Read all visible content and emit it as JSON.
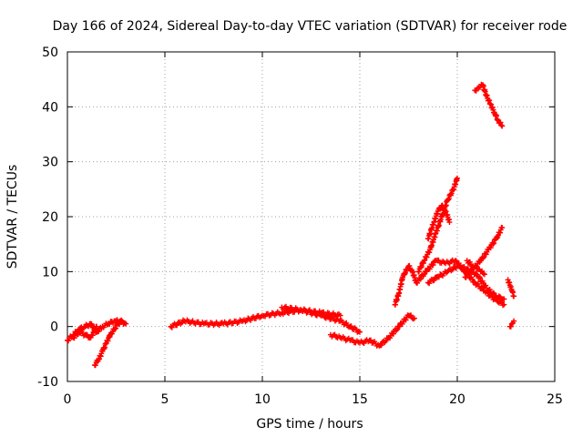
{
  "chart_data": {
    "type": "scatter",
    "title": "Day 166 of 2024, Sidereal Day-to-day VTEC variation (SDTVAR) for receiver rode",
    "xlabel": "GPS time / hours",
    "ylabel": "SDTVAR / TECUs",
    "xlim": [
      0,
      25
    ],
    "ylim": [
      -10,
      50
    ],
    "x_ticks": [
      0,
      5,
      10,
      15,
      20,
      25
    ],
    "x_tick_labels": [
      "0",
      "5",
      "10",
      "15",
      "20",
      "25"
    ],
    "y_ticks": [
      -10,
      0,
      10,
      20,
      30,
      40,
      50
    ],
    "y_tick_labels": [
      "-10",
      "0",
      "10",
      "20",
      "30",
      "40",
      "50"
    ],
    "grid": true,
    "marker": "+",
    "series": [
      {
        "name": "SDTVAR",
        "color": "#ff0000",
        "segments": [
          {
            "x": [
              0.0,
              0.3,
              0.6,
              0.9,
              1.2,
              1.5,
              1.8,
              2.1,
              2.4,
              2.7,
              3.0
            ],
            "y": [
              -2.5,
              -1.5,
              -0.5,
              0.0,
              0.5,
              -1.0,
              0.0,
              0.5,
              1.0,
              1.0,
              0.5
            ]
          },
          {
            "x": [
              0.3,
              0.6,
              0.9,
              1.2,
              1.5
            ],
            "y": [
              -2.0,
              -1.0,
              -1.5,
              -2.0,
              0.0
            ]
          },
          {
            "x": [
              1.4,
              1.6,
              1.8,
              2.0,
              2.2,
              2.4,
              2.6,
              2.8
            ],
            "y": [
              -7.0,
              -6.0,
              -4.5,
              -3.0,
              -1.5,
              -0.5,
              0.5,
              1.0
            ]
          },
          {
            "x": [
              5.3,
              6.0,
              7.0,
              8.0,
              9.0,
              10.0,
              11.0,
              12.0,
              13.0,
              14.0,
              14.5,
              15.0
            ],
            "y": [
              0.0,
              1.0,
              0.5,
              0.5,
              1.0,
              2.0,
              2.5,
              3.0,
              2.0,
              1.0,
              0.0,
              -1.0
            ]
          },
          {
            "x": [
              11.0,
              12.0,
              13.0,
              14.0
            ],
            "y": [
              3.5,
              3.0,
              2.5,
              2.0
            ]
          },
          {
            "x": [
              13.5,
              14.0,
              14.5,
              15.0,
              15.5,
              16.0,
              16.5,
              17.0,
              17.5,
              17.8
            ],
            "y": [
              -1.5,
              -2.0,
              -2.5,
              -3.0,
              -2.5,
              -3.5,
              -2.0,
              0.0,
              2.0,
              1.5
            ]
          },
          {
            "x": [
              16.8,
              17.0,
              17.2,
              17.5,
              17.7,
              17.9
            ],
            "y": [
              4.0,
              6.0,
              9.0,
              11.0,
              10.0,
              8.0
            ]
          },
          {
            "x": [
              18.0,
              18.3,
              18.6,
              18.9,
              19.2,
              19.5,
              19.8,
              20.0
            ],
            "y": [
              10.0,
              12.0,
              14.0,
              17.0,
              20.0,
              23.0,
              25.0,
              27.0
            ]
          },
          {
            "x": [
              18.5,
              18.8,
              19.0,
              19.2,
              19.4,
              19.6
            ],
            "y": [
              16.0,
              19.0,
              21.0,
              22.0,
              21.0,
              19.0
            ]
          },
          {
            "x": [
              17.9,
              18.4,
              18.9,
              19.4,
              19.9,
              20.4,
              20.9,
              21.4,
              21.9,
              22.4
            ],
            "y": [
              8.0,
              10.0,
              12.0,
              11.5,
              12.0,
              10.0,
              8.0,
              6.5,
              5.0,
              4.0
            ]
          },
          {
            "x": [
              18.5,
              19.0,
              19.5,
              20.0,
              20.5,
              21.0,
              21.5,
              22.0,
              22.4
            ],
            "y": [
              8.0,
              9.0,
              10.0,
              11.0,
              10.5,
              9.5,
              7.0,
              5.5,
              5.0
            ]
          },
          {
            "x": [
              20.4,
              20.8,
              21.2,
              21.6,
              22.0,
              22.3
            ],
            "y": [
              9.0,
              10.5,
              12.0,
              14.0,
              16.0,
              18.0
            ]
          },
          {
            "x": [
              20.5,
              20.8,
              21.0,
              21.2,
              21.4
            ],
            "y": [
              12.0,
              11.0,
              10.5,
              10.0,
              9.5
            ]
          },
          {
            "x": [
              20.9,
              21.1,
              21.3,
              21.5,
              21.7,
              21.9,
              22.1,
              22.3
            ],
            "y": [
              43.0,
              43.5,
              44.0,
              42.0,
              40.5,
              39.0,
              37.5,
              36.5
            ]
          },
          {
            "x": [
              22.6,
              22.7,
              22.8,
              22.9
            ],
            "y": [
              8.5,
              7.5,
              6.5,
              5.5
            ]
          },
          {
            "x": [
              22.7,
              22.8,
              22.9
            ],
            "y": [
              0.0,
              0.5,
              1.0
            ]
          }
        ]
      }
    ]
  }
}
